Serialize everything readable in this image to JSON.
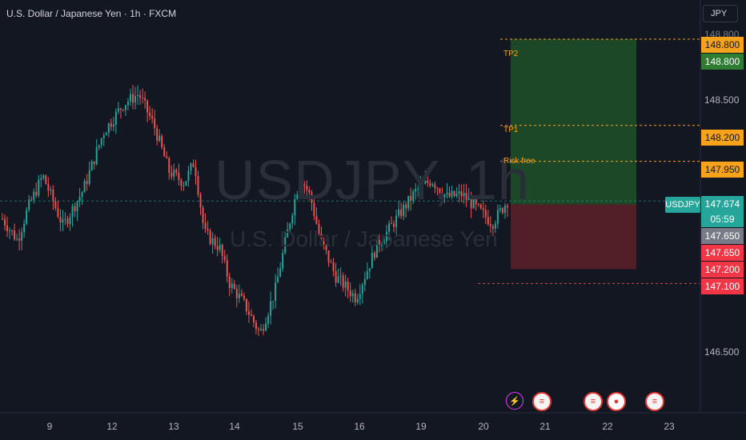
{
  "header": {
    "title": "U.S. Dollar / Japanese Yen · 1h · FXCM"
  },
  "currency_button": "JPY",
  "watermark": {
    "symbol": "USDJPY, 1h",
    "name": "U.S. Dollar / Japanese Yen"
  },
  "symbol_tag": "USDJPY",
  "level_labels": {
    "tp2": "TP2",
    "tp1": "TP1",
    "risk_free": "Risk free"
  },
  "price_labels": {
    "tp2_orange": "148.800",
    "tp2_green": "148.800",
    "tp1": "148.200",
    "risk_free": "147.950",
    "last_price": "147.674",
    "countdown": "05:59",
    "entry_gray": "147.650",
    "entry_red": "147.650",
    "stop": "147.200",
    "stop_line": "147.100"
  },
  "y_ticks": [
    "148.800",
    "148.500",
    "146.500"
  ],
  "x_ticks": [
    "9",
    "12",
    "13",
    "14",
    "15",
    "16",
    "19",
    "20",
    "21",
    "22",
    "23"
  ],
  "events": [
    {
      "icon": "lightning-icon",
      "color": "#e040fb"
    },
    {
      "icon": "us-flag-icon",
      "color": "#e53935"
    },
    {
      "icon": "us-flag-icon",
      "color": "#e53935"
    },
    {
      "icon": "japan-flag-icon",
      "color": "#e53935"
    },
    {
      "icon": "us-flag-icon",
      "color": "#e53935"
    }
  ],
  "colors": {
    "background": "#131722",
    "up": "#26a69a",
    "down": "#ef5350",
    "profit_zone": "#1e5129",
    "loss_zone": "#5a1f28",
    "target_line": "#f7a21b",
    "tp_green": "#2e7d32",
    "stop_red": "#f23645"
  },
  "chart_data": {
    "type": "candlestick",
    "title": "U.S. Dollar / Japanese Yen · 1h · FXCM",
    "x_labels": [
      "9",
      "12",
      "13",
      "14",
      "15",
      "16",
      "19",
      "20",
      "21",
      "22",
      "23"
    ],
    "ylim": [
      146.2,
      148.95
    ],
    "close_path": [
      [
        0,
        147.55
      ],
      [
        0.03,
        147.4
      ],
      [
        0.05,
        147.62
      ],
      [
        0.08,
        147.85
      ],
      [
        0.12,
        147.5
      ],
      [
        0.16,
        147.75
      ],
      [
        0.2,
        148.15
      ],
      [
        0.24,
        148.35
      ],
      [
        0.27,
        148.42
      ],
      [
        0.3,
        148.2
      ],
      [
        0.33,
        147.88
      ],
      [
        0.36,
        147.8
      ],
      [
        0.38,
        147.95
      ],
      [
        0.4,
        147.45
      ],
      [
        0.43,
        147.35
      ],
      [
        0.45,
        147.1
      ],
      [
        0.48,
        146.95
      ],
      [
        0.51,
        146.75
      ],
      [
        0.54,
        147.05
      ],
      [
        0.57,
        147.55
      ],
      [
        0.59,
        147.85
      ],
      [
        0.61,
        147.7
      ],
      [
        0.63,
        147.4
      ],
      [
        0.66,
        147.15
      ],
      [
        0.7,
        147.0
      ],
      [
        0.74,
        147.35
      ],
      [
        0.78,
        147.55
      ],
      [
        0.82,
        147.75
      ],
      [
        0.85,
        147.82
      ],
      [
        0.88,
        147.7
      ],
      [
        0.91,
        147.72
      ],
      [
        0.94,
        147.62
      ],
      [
        0.97,
        147.52
      ],
      [
        1.0,
        147.674
      ]
    ],
    "position": {
      "entry": 147.65,
      "stop": 147.2,
      "tp1": 148.2,
      "tp2": 148.8,
      "risk_free": 147.95,
      "lower_line": 147.1
    },
    "last_price": 147.674
  }
}
